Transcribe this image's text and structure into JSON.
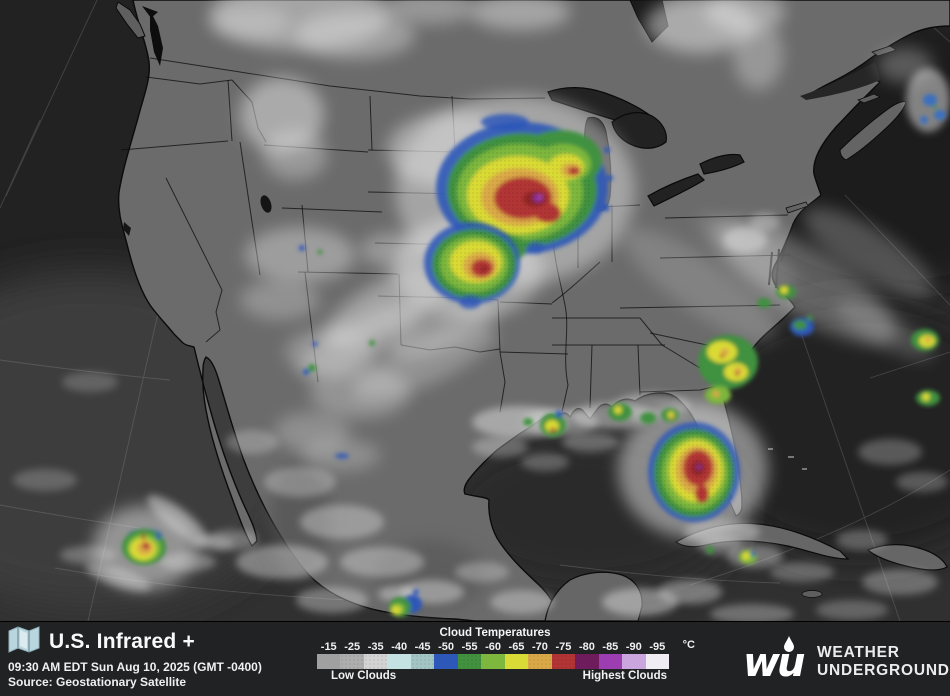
{
  "header": {
    "title": "U.S. Infrared +",
    "timestamp": "09:30 AM EDT Sun Aug 10, 2025 (GMT -0400)",
    "source": "Source: Geostationary Satellite"
  },
  "legend": {
    "title": "Cloud Temperatures",
    "unit": "°C",
    "low_label": "Low Clouds",
    "high_label": "Highest Clouds",
    "stops": [
      {
        "label": "-15",
        "color": "#a0a0a0",
        "texture": false
      },
      {
        "label": "-25",
        "color": "#aeaeae",
        "texture": true
      },
      {
        "label": "-35",
        "color": "#d3d3d3",
        "texture": true
      },
      {
        "label": "-40",
        "color": "#c3e2e1",
        "texture": false
      },
      {
        "label": "-45",
        "color": "#a3c6c5",
        "texture": true
      },
      {
        "label": "-50",
        "color": "#2d57b8",
        "texture": false
      },
      {
        "label": "-55",
        "color": "#41913f",
        "texture": true
      },
      {
        "label": "-60",
        "color": "#7db73d",
        "texture": false
      },
      {
        "label": "-65",
        "color": "#dada36",
        "texture": false
      },
      {
        "label": "-70",
        "color": "#daa947",
        "texture": true
      },
      {
        "label": "-75",
        "color": "#b23434",
        "texture": true
      },
      {
        "label": "-80",
        "color": "#6f1c5d",
        "texture": false
      },
      {
        "label": "-85",
        "color": "#9d3db2",
        "texture": false
      },
      {
        "label": "-90",
        "color": "#cba5de",
        "texture": false
      },
      {
        "label": "-95",
        "color": "#f0ecf4",
        "texture": false
      }
    ]
  },
  "branding": {
    "mark": "wu",
    "line1": "WEATHER",
    "line2": "UNDERGROUND"
  },
  "icons": [
    "map-icon",
    "raindrop-icon"
  ],
  "map_colors": {
    "land": "#6b6b6b",
    "ocean": "#303030",
    "coast": "#0b0b0b",
    "storm_blue": "#2d57b8",
    "storm_green": "#41913f",
    "storm_lightgreen": "#7db73d",
    "storm_yellow": "#dada36",
    "storm_orange": "#daa947",
    "storm_red": "#b23434",
    "storm_maroon": "#8f2626",
    "storm_purple": "#8a2f9c",
    "cloud": "#e9e9e9"
  }
}
